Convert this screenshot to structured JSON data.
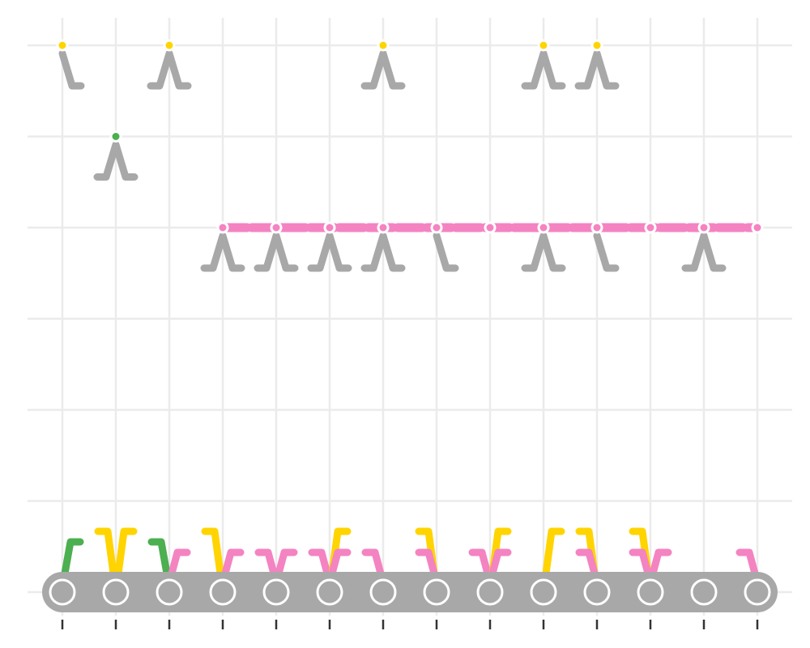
{
  "colors": {
    "background": "#ffffff",
    "grid": "#ebebeb",
    "tick": "#333333",
    "stem": "#a8a8a8",
    "track": "#a8a8a8",
    "node_fill": "#a8a8a8",
    "node_stroke": "#ffffff",
    "green": "#4caf50",
    "yellow": "#ffd400",
    "pink": "#f483c2"
  },
  "diagram": {
    "columns": 14,
    "rows": [
      1,
      2,
      3,
      4,
      5,
      6,
      7
    ],
    "top_nodes": [
      {
        "col": 1,
        "row": 7,
        "color": "yellow",
        "type": "half"
      },
      {
        "col": 2,
        "row": 6,
        "color": "green",
        "type": "full"
      },
      {
        "col": 3,
        "row": 7,
        "color": "yellow",
        "type": "full"
      },
      {
        "col": 4,
        "row": 5,
        "color": "pink",
        "type": "full"
      },
      {
        "col": 5,
        "row": 5,
        "color": "pink",
        "type": "full"
      },
      {
        "col": 6,
        "row": 5,
        "color": "pink",
        "type": "full"
      },
      {
        "col": 7,
        "row": 7,
        "color": "yellow",
        "type": "full"
      },
      {
        "col": 7,
        "row": 5,
        "color": "pink",
        "type": "full"
      },
      {
        "col": 8,
        "row": 5,
        "color": "pink",
        "type": "half"
      },
      {
        "col": 9,
        "row": 5,
        "color": "pink",
        "type": "none"
      },
      {
        "col": 10,
        "row": 7,
        "color": "yellow",
        "type": "full"
      },
      {
        "col": 10,
        "row": 5,
        "color": "pink",
        "type": "full"
      },
      {
        "col": 11,
        "row": 7,
        "color": "yellow",
        "type": "full"
      },
      {
        "col": 11,
        "row": 5,
        "color": "pink",
        "type": "half"
      },
      {
        "col": 12,
        "row": 5,
        "color": "pink",
        "type": "none"
      },
      {
        "col": 13,
        "row": 5,
        "color": "pink",
        "type": "full"
      },
      {
        "col": 14,
        "row": 5,
        "color": "pink",
        "type": "none"
      }
    ],
    "pink_line": {
      "row": 5,
      "from_col": 4,
      "to_col": 14
    },
    "connectors": [
      {
        "col": 1,
        "color": "green",
        "dir": "right",
        "level": 1
      },
      {
        "col": 2,
        "color": "yellow",
        "dir": "left",
        "level": 0
      },
      {
        "col": 2,
        "color": "yellow",
        "dir": "right",
        "level": 0
      },
      {
        "col": 3,
        "color": "green",
        "dir": "left",
        "level": 1
      },
      {
        "col": 3,
        "color": "pink",
        "dir": "right",
        "level": 2
      },
      {
        "col": 4,
        "color": "yellow",
        "dir": "left",
        "level": 0
      },
      {
        "col": 4,
        "color": "pink",
        "dir": "right",
        "level": 2
      },
      {
        "col": 5,
        "color": "pink",
        "dir": "left",
        "level": 2
      },
      {
        "col": 5,
        "color": "pink",
        "dir": "right",
        "level": 2
      },
      {
        "col": 6,
        "color": "pink",
        "dir": "left",
        "level": 2
      },
      {
        "col": 6,
        "color": "yellow",
        "dir": "right",
        "level": 0
      },
      {
        "col": 6,
        "color": "pink",
        "dir": "right",
        "level": 2
      },
      {
        "col": 7,
        "color": "pink",
        "dir": "left",
        "level": 2
      },
      {
        "col": 8,
        "color": "yellow",
        "dir": "left",
        "level": 0
      },
      {
        "col": 8,
        "color": "pink",
        "dir": "left",
        "level": 2
      },
      {
        "col": 9,
        "color": "pink",
        "dir": "left",
        "level": 2
      },
      {
        "col": 9,
        "color": "yellow",
        "dir": "right",
        "level": 0
      },
      {
        "col": 9,
        "color": "pink",
        "dir": "right",
        "level": 2
      },
      {
        "col": 10,
        "color": "yellow",
        "dir": "right",
        "level": 0
      },
      {
        "col": 11,
        "color": "yellow",
        "dir": "left",
        "level": 0
      },
      {
        "col": 11,
        "color": "pink",
        "dir": "left",
        "level": 2
      },
      {
        "col": 12,
        "color": "yellow",
        "dir": "left",
        "level": 0
      },
      {
        "col": 12,
        "color": "pink",
        "dir": "left",
        "level": 2
      },
      {
        "col": 12,
        "color": "pink",
        "dir": "right",
        "level": 2
      },
      {
        "col": 14,
        "color": "pink",
        "dir": "left",
        "level": 2
      }
    ]
  }
}
